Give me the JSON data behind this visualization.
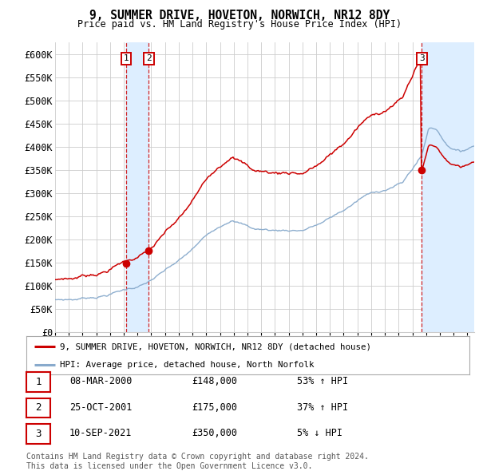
{
  "title": "9, SUMMER DRIVE, HOVETON, NORWICH, NR12 8DY",
  "subtitle": "Price paid vs. HM Land Registry's House Price Index (HPI)",
  "xlim_start": 1995.0,
  "xlim_end": 2025.5,
  "ylim": [
    0,
    625000
  ],
  "yticks": [
    0,
    50000,
    100000,
    150000,
    200000,
    250000,
    300000,
    350000,
    400000,
    450000,
    500000,
    550000,
    600000
  ],
  "ytick_labels": [
    "£0",
    "£50K",
    "£100K",
    "£150K",
    "£200K",
    "£250K",
    "£300K",
    "£350K",
    "£400K",
    "£450K",
    "£500K",
    "£550K",
    "£600K"
  ],
  "sale_dates": [
    2000.19,
    2001.82,
    2021.69
  ],
  "sale_prices": [
    148000,
    175000,
    350000
  ],
  "sale_labels": [
    "1",
    "2",
    "3"
  ],
  "legend_line1": "9, SUMMER DRIVE, HOVETON, NORWICH, NR12 8DY (detached house)",
  "legend_line2": "HPI: Average price, detached house, North Norfolk",
  "table_entries": [
    [
      "1",
      "08-MAR-2000",
      "£148,000",
      "53% ↑ HPI"
    ],
    [
      "2",
      "25-OCT-2001",
      "£175,000",
      "37% ↑ HPI"
    ],
    [
      "3",
      "10-SEP-2021",
      "£350,000",
      "5% ↓ HPI"
    ]
  ],
  "footer": "Contains HM Land Registry data © Crown copyright and database right 2024.\nThis data is licensed under the Open Government Licence v3.0.",
  "line_color_red": "#cc0000",
  "line_color_blue": "#88aacc",
  "shading_color": "#ddeeff",
  "grid_color": "#cccccc",
  "background_color": "#ffffff"
}
